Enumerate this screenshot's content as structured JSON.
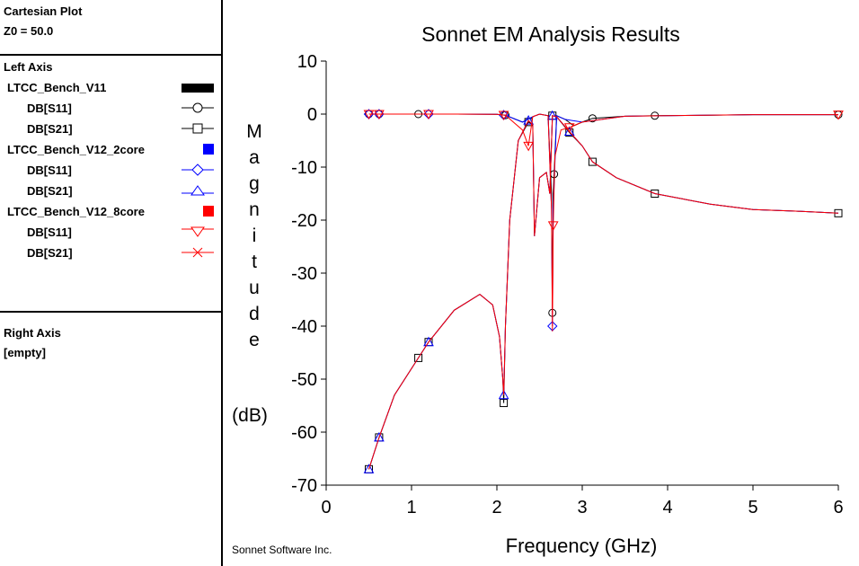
{
  "sidebar": {
    "header": {
      "title": "Cartesian Plot",
      "z0": "Z0 = 50.0"
    },
    "left_axis": {
      "title": "Left Axis",
      "groups": [
        {
          "name": "LTCC_Bench_V11",
          "color": "#000000",
          "series": [
            {
              "label": "DB[S11]",
              "marker": "circle"
            },
            {
              "label": "DB[S21]",
              "marker": "square"
            }
          ]
        },
        {
          "name": "LTCC_Bench_V12_2core",
          "color": "#0000ff",
          "series": [
            {
              "label": "DB[S11]",
              "marker": "diamond"
            },
            {
              "label": "DB[S21]",
              "marker": "triangle-up"
            }
          ]
        },
        {
          "name": "LTCC_Bench_V12_8core",
          "color": "#ff0000",
          "series": [
            {
              "label": "DB[S11]",
              "marker": "triangle-down"
            },
            {
              "label": "DB[S21]",
              "marker": "x"
            }
          ]
        }
      ]
    },
    "right_axis": {
      "title": "Right Axis",
      "value": "[empty]"
    }
  },
  "chart_data": {
    "type": "line",
    "title": "Sonnet EM Analysis Results",
    "xlabel": "Frequency (GHz)",
    "ylabel_letters": [
      "M",
      "a",
      "g",
      "n",
      "i",
      "t",
      "u",
      "d",
      "e"
    ],
    "ylabel_unit": "(dB)",
    "xlim": [
      0,
      6
    ],
    "ylim": [
      -70,
      10
    ],
    "xticks": [
      0,
      1,
      2,
      3,
      4,
      5,
      6
    ],
    "yticks": [
      10,
      0,
      -10,
      -20,
      -30,
      -40,
      -50,
      -60,
      -70
    ],
    "footer": "Sonnet Software Inc.",
    "grid": false,
    "series": [
      {
        "name": "DB[S11]",
        "group": "LTCC_Bench_V11",
        "color": "#000000",
        "marker": "circle",
        "markers_x": [
          0.5,
          0.62,
          1.08,
          2.1,
          2.65,
          2.67,
          3.12,
          3.85,
          6.0
        ],
        "x": [
          0.5,
          1.0,
          1.5,
          2.0,
          2.1,
          2.3,
          2.42,
          2.5,
          2.6,
          2.64,
          2.65,
          2.66,
          2.7,
          2.8,
          2.9,
          3.0,
          3.12,
          3.5,
          3.85,
          4.5,
          5.0,
          6.0
        ],
        "y": [
          0,
          0,
          0,
          -0.05,
          -0.2,
          -1.5,
          -0.5,
          0,
          -0.3,
          -15,
          -37.5,
          -15,
          -0.3,
          -1,
          -2.2,
          -1.5,
          -0.8,
          -0.4,
          -0.3,
          -0.2,
          -0.1,
          -0.1
        ]
      },
      {
        "name": "DB[S21]",
        "group": "LTCC_Bench_V11",
        "color": "#000000",
        "marker": "square",
        "markers_x": [
          0.5,
          0.62,
          1.08,
          1.2,
          2.08,
          2.37,
          2.65,
          2.85,
          3.12,
          3.85,
          6.0
        ],
        "x": [
          0.5,
          0.62,
          0.8,
          1.08,
          1.2,
          1.5,
          1.8,
          1.95,
          2.03,
          2.07,
          2.08,
          2.1,
          2.15,
          2.25,
          2.37,
          2.42,
          2.44,
          2.5,
          2.58,
          2.62,
          2.65,
          2.7,
          2.85,
          3.0,
          3.12,
          3.4,
          3.85,
          4.5,
          5.0,
          5.5,
          6.0
        ],
        "y": [
          -67,
          -61,
          -53,
          -46,
          -43,
          -37,
          -34,
          -36,
          -42,
          -50,
          -54.5,
          -40,
          -20,
          -5,
          -1.5,
          -2,
          -23,
          -12,
          -11,
          -15,
          -0.3,
          -0.5,
          -3.5,
          -6,
          -9,
          -12,
          -15,
          -17,
          -18,
          -18.3,
          -18.7
        ]
      },
      {
        "name": "DB[S11]",
        "group": "LTCC_Bench_V12_2core",
        "color": "#0000ff",
        "marker": "diamond",
        "markers_x": [
          0.5,
          0.62,
          1.2,
          2.08,
          2.65
        ],
        "x": [
          0.5,
          1.0,
          1.5,
          2.0,
          2.1,
          2.3,
          2.42,
          2.5,
          2.6,
          2.64,
          2.65,
          2.66,
          2.7,
          2.8,
          3.0,
          3.5,
          4.0,
          5.0,
          6.0
        ],
        "y": [
          0,
          0,
          0,
          -0.05,
          -0.2,
          -1.5,
          -0.5,
          0,
          -0.3,
          -18,
          -40,
          -18,
          -0.3,
          -1,
          -1.5,
          -0.4,
          -0.3,
          -0.1,
          -0.1
        ]
      },
      {
        "name": "DB[S21]",
        "group": "LTCC_Bench_V12_2core",
        "color": "#0000ff",
        "marker": "triangle-up",
        "markers_x": [
          0.5,
          0.62,
          1.2,
          2.08,
          2.37,
          2.65,
          2.85
        ],
        "x": [
          0.5,
          0.62,
          0.8,
          1.08,
          1.2,
          1.5,
          1.8,
          1.95,
          2.03,
          2.07,
          2.08,
          2.1,
          2.15,
          2.25,
          2.37,
          2.42,
          2.44,
          2.5,
          2.58,
          2.62,
          2.65,
          2.7,
          2.85,
          3.0,
          3.12,
          3.4,
          3.85,
          4.5,
          5.0,
          5.5,
          6.0
        ],
        "y": [
          -67,
          -61,
          -53,
          -46,
          -43,
          -37,
          -34,
          -36,
          -42,
          -50,
          -53,
          -40,
          -20,
          -5,
          -1.2,
          -2,
          -23,
          -12,
          -11,
          -15,
          -0.3,
          -0.5,
          -3.3,
          -6,
          -9,
          -12,
          -15,
          -17,
          -18,
          -18.3,
          -18.7
        ]
      },
      {
        "name": "DB[S11]",
        "group": "LTCC_Bench_V12_8core",
        "color": "#ff0000",
        "marker": "triangle-down",
        "markers_x": [
          0.5,
          0.62,
          1.2,
          2.08,
          2.37,
          2.66,
          2.85,
          6.0
        ],
        "x": [
          0.5,
          1.0,
          1.5,
          2.0,
          2.1,
          2.3,
          2.37,
          2.42,
          2.5,
          2.6,
          2.64,
          2.65,
          2.66,
          2.68,
          2.75,
          2.85,
          3.0,
          3.5,
          4.0,
          5.0,
          6.0
        ],
        "y": [
          0,
          0,
          0,
          -0.05,
          -0.2,
          -3,
          -6,
          -0.5,
          0,
          -0.3,
          -18,
          -41,
          -21,
          -8,
          -3,
          -2.5,
          -1.5,
          -0.4,
          -0.3,
          -0.1,
          -0.1
        ]
      },
      {
        "name": "DB[S21]",
        "group": "LTCC_Bench_V12_8core",
        "color": "#ff0000",
        "marker": "x",
        "markers_x": [],
        "x": [
          0.5,
          0.62,
          0.8,
          1.08,
          1.2,
          1.5,
          1.8,
          1.95,
          2.03,
          2.07,
          2.08,
          2.1,
          2.15,
          2.25,
          2.37,
          2.42,
          2.44,
          2.5,
          2.58,
          2.62,
          2.65,
          2.7,
          2.85,
          3.0,
          3.12,
          3.4,
          3.85,
          4.5,
          5.0,
          5.5,
          6.0
        ],
        "y": [
          -67,
          -61,
          -53,
          -46,
          -43,
          -37,
          -34,
          -36,
          -42,
          -50,
          -53,
          -40,
          -20,
          -5,
          -1.2,
          -2,
          -23,
          -12,
          -11,
          -15,
          -0.3,
          -0.5,
          -3.3,
          -6,
          -9,
          -12,
          -15,
          -17,
          -18,
          -18.3,
          -18.7
        ]
      }
    ]
  }
}
